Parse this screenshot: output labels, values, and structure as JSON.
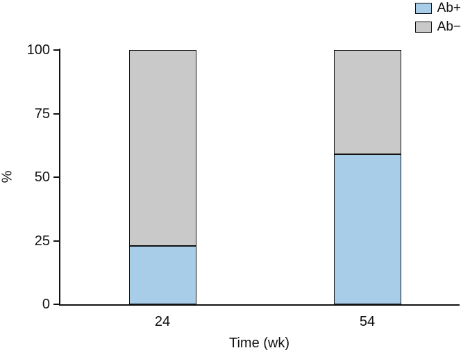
{
  "chart_data": {
    "type": "bar",
    "subtype": "stacked",
    "title": "",
    "xlabel": "Time (wk)",
    "ylabel": "%",
    "categories": [
      "24",
      "54"
    ],
    "series": [
      {
        "name": "Ab+",
        "color": "#a7cde9",
        "values": [
          23,
          59
        ]
      },
      {
        "name": "Ab−",
        "color": "#c9c9c9",
        "values": [
          77,
          41
        ]
      }
    ],
    "ylim": [
      0,
      100
    ],
    "yticks": [
      0,
      25,
      50,
      75,
      100
    ],
    "grid": false,
    "legend_position": "top-right"
  }
}
